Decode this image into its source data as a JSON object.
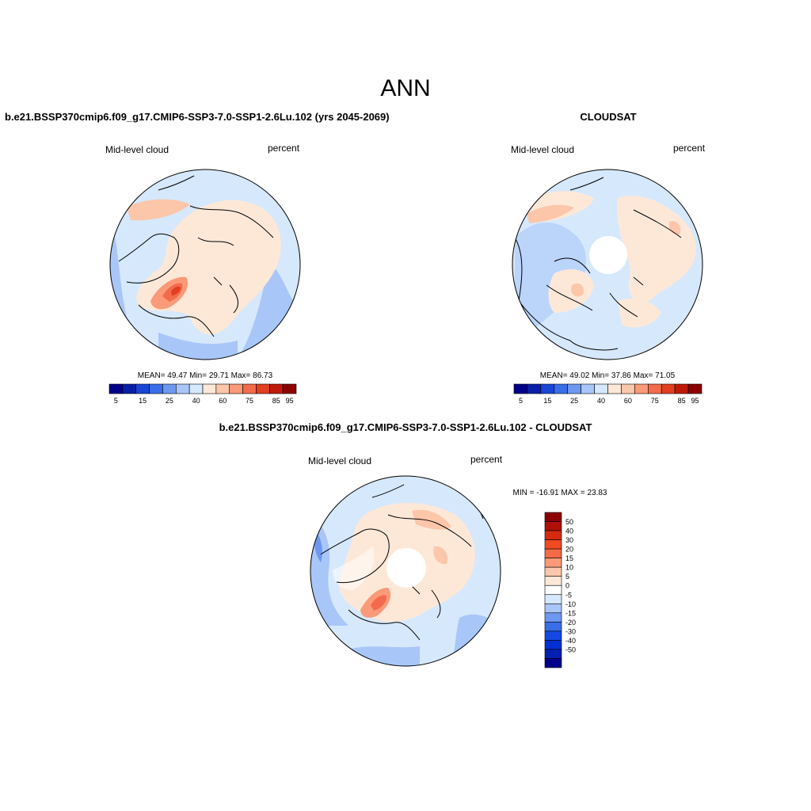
{
  "page_title": "ANN",
  "colors": {
    "abs_scale": [
      "#00008b",
      "#0a1fa8",
      "#1a46d6",
      "#3a6ee8",
      "#6e98f0",
      "#a8c6f8",
      "#d6e8fc",
      "#fde8d8",
      "#fcc6aa",
      "#fa9a78",
      "#f26b4c",
      "#e23e20",
      "#be1a0a",
      "#8c0000"
    ],
    "diff_scale": [
      "#00008b",
      "#0020b0",
      "#0030d0",
      "#1448e4",
      "#3a6ee8",
      "#6e98f0",
      "#a8c6f8",
      "#d6e8fc",
      "#ffffff",
      "#fde8d8",
      "#fcc6aa",
      "#fa9a78",
      "#f56a46",
      "#ef4a22",
      "#d42a10",
      "#b01008",
      "#8c0000"
    ]
  },
  "panels": [
    {
      "title": "b.e21.BSSP370cmip6.f09_g17.CMIP6-SSP3-7.0-SSP1-2.6Lu.102 (yrs 2045-2069)",
      "variable": "Mid-level cloud",
      "units": "percent",
      "stats": "MEAN=  49.47  Min=  29.71  Max=  86.73",
      "colorbar_labels": [
        "5",
        "15",
        "25",
        "40",
        "60",
        "75",
        "85",
        "95"
      ]
    },
    {
      "title": "CLOUDSAT",
      "variable": "Mid-level cloud",
      "units": "percent",
      "stats": "MEAN=  49.02  Min=  37.86  Max=  71.05",
      "colorbar_labels": [
        "5",
        "15",
        "25",
        "40",
        "60",
        "75",
        "85",
        "95"
      ]
    },
    {
      "title": "b.e21.BSSP370cmip6.f09_g17.CMIP6-SSP3-7.0-SSP1-2.6Lu.102 - CLOUDSAT",
      "variable": "Mid-level cloud",
      "units": "percent",
      "stats": "MIN = -16.91 MAX =  23.83",
      "colorbar_labels": [
        "50",
        "40",
        "30",
        "20",
        "15",
        "10",
        "5",
        "0",
        "-5",
        "-10",
        "-15",
        "-20",
        "-30",
        "-40",
        "-50"
      ]
    }
  ]
}
